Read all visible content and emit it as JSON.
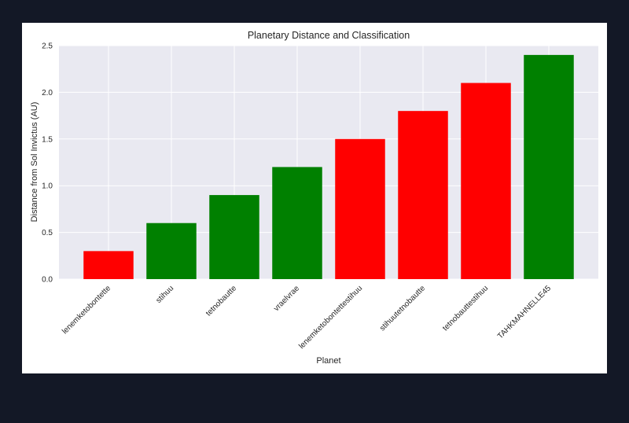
{
  "chart_data": {
    "type": "bar",
    "title": "Planetary Distance and Classification",
    "xlabel": "Planet",
    "ylabel": "Distance from Sol Invictus (AU)",
    "categories": [
      "lenemketobontette",
      "stihuu",
      "tetnobautte",
      "vraelvrae",
      "lenemketobontettestihuu",
      "stihuutetnobautte",
      "tetnobauttestihuu",
      "TAHKMAHNELLE45"
    ],
    "values": [
      0.3,
      0.6,
      0.9,
      1.2,
      1.5,
      1.8,
      2.1,
      2.4
    ],
    "bar_colors": [
      "#ff0000",
      "#008000",
      "#008000",
      "#008000",
      "#ff0000",
      "#ff0000",
      "#ff0000",
      "#008000"
    ],
    "ylim": [
      0,
      2.5
    ],
    "yticks": [
      "0.0",
      "0.5",
      "1.0",
      "1.5",
      "2.0",
      "2.5"
    ],
    "grid": true,
    "background": "#e9e9f1",
    "legend": "none"
  }
}
